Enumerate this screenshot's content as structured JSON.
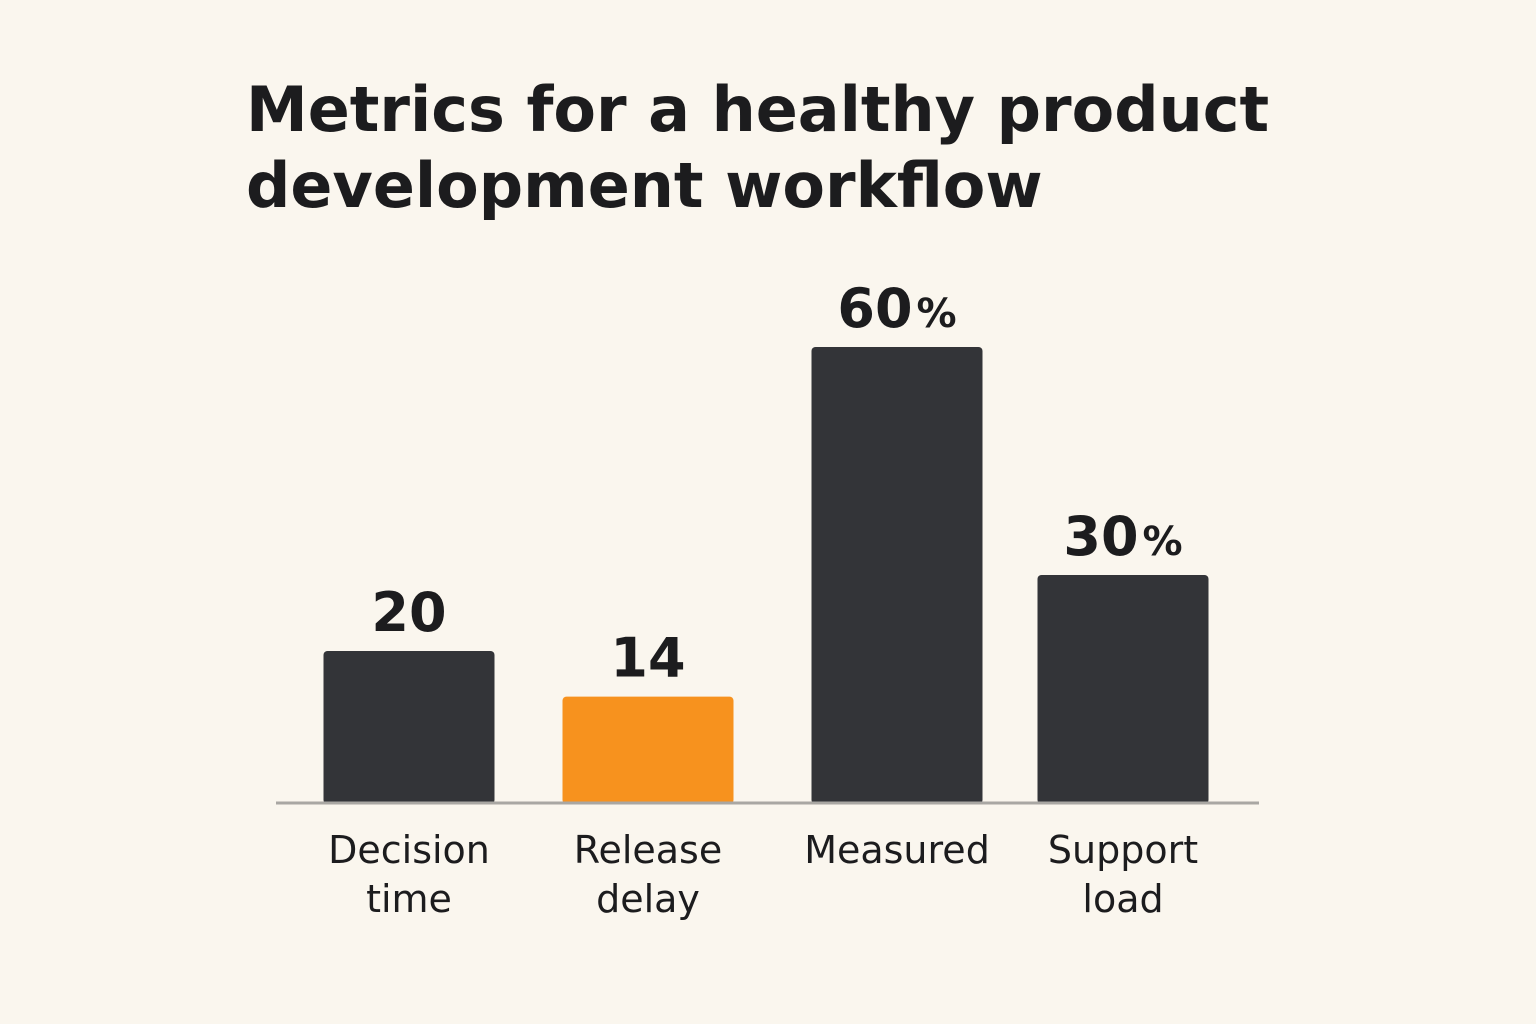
{
  "chart_data": {
    "type": "bar",
    "title_lines": [
      "Metrics for a healthy product",
      "development workflow"
    ],
    "categories": [
      [
        "Decision",
        "time"
      ],
      [
        "Release",
        "delay"
      ],
      [
        "Measured"
      ],
      [
        "Support",
        "load"
      ]
    ],
    "values": [
      20,
      14,
      60,
      30
    ],
    "value_labels": [
      {
        "number": "20",
        "suffix": ""
      },
      {
        "number": "14",
        "suffix": ""
      },
      {
        "number": "60",
        "suffix": "%"
      },
      {
        "number": "30",
        "suffix": "%"
      }
    ],
    "highlight_index": 1,
    "colors": {
      "bar": "#333438",
      "highlight": "#f7921e",
      "baseline": "#a9a7a3",
      "background": "#faf6ee",
      "text": "#1c1c1e"
    },
    "grid": false,
    "legend": "none"
  }
}
